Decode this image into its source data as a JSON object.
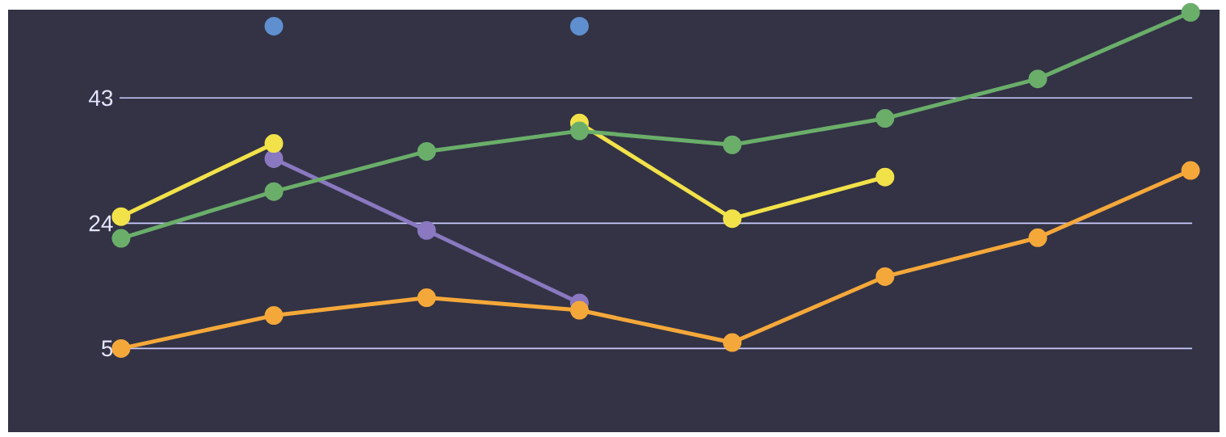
{
  "chart_data": {
    "type": "line",
    "categories": [
      null,
      null,
      null,
      null,
      null,
      null,
      null,
      null
    ],
    "series": [
      {
        "type": "scatter",
        "color": "#5f8fcf",
        "values": [
          null,
          53.9,
          null,
          53.9,
          null,
          null,
          null,
          null
        ]
      },
      {
        "color": "#8a78c0",
        "values": [
          null,
          33.8,
          22.9,
          11.9,
          null,
          null,
          null,
          null
        ]
      },
      {
        "color": "#f2e24a",
        "values": [
          25.0,
          36.1,
          null,
          39.2,
          24.7,
          31.0,
          null,
          null
        ]
      },
      {
        "color": "#6aae6a",
        "values": [
          21.7,
          28.8,
          34.9,
          38.0,
          35.9,
          39.9,
          45.9,
          56.0
        ]
      },
      {
        "color": "#f5a83a",
        "values": [
          5.0,
          10.0,
          12.7,
          10.8,
          5.9,
          15.9,
          21.8,
          32.0
        ]
      }
    ],
    "ylim": [
      -7.7,
      56.4
    ],
    "yticks": [
      5,
      24,
      43
    ],
    "grid": "y",
    "marker": "circle"
  }
}
